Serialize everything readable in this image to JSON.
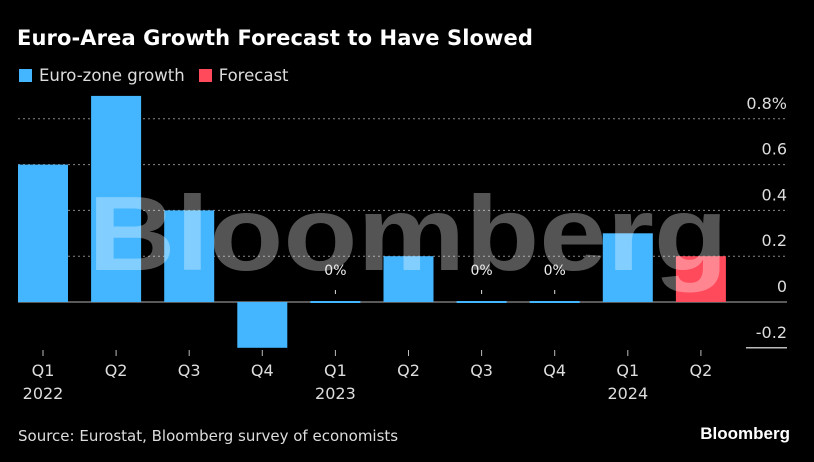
{
  "header": {
    "title": "Euro-Area Growth Forecast to Have Slowed"
  },
  "legend": [
    {
      "label": "Euro-zone growth",
      "color": "#44b6ff"
    },
    {
      "label": "Forecast",
      "color": "#ff4a5b"
    }
  ],
  "footer": {
    "source": "Source: Eurostat, Bloomberg survey of economists",
    "brand": "Bloomberg"
  },
  "watermark": "Bloomberg",
  "chart_data": {
    "type": "bar",
    "title": "Euro-Area Growth Forecast to Have Slowed",
    "xlabel": "",
    "ylabel": "",
    "categories": [
      "Q1 2022",
      "Q2 2022",
      "Q3 2022",
      "Q4 2022",
      "Q1 2023",
      "Q2 2023",
      "Q3 2023",
      "Q4 2023",
      "Q1 2024",
      "Q2 2024"
    ],
    "tick_labels": [
      {
        "quarter": "Q1",
        "year": "2022"
      },
      {
        "quarter": "Q2",
        "year": ""
      },
      {
        "quarter": "Q3",
        "year": ""
      },
      {
        "quarter": "Q4",
        "year": ""
      },
      {
        "quarter": "Q1",
        "year": "2023"
      },
      {
        "quarter": "Q2",
        "year": ""
      },
      {
        "quarter": "Q3",
        "year": ""
      },
      {
        "quarter": "Q4",
        "year": ""
      },
      {
        "quarter": "Q1",
        "year": "2024"
      },
      {
        "quarter": "Q2",
        "year": ""
      }
    ],
    "values": [
      0.6,
      0.9,
      0.4,
      -0.2,
      0.0,
      0.2,
      0.0,
      0.0,
      0.3,
      0.2
    ],
    "series_type": [
      "actual",
      "actual",
      "actual",
      "actual",
      "actual",
      "actual",
      "actual",
      "actual",
      "actual",
      "forecast"
    ],
    "series": [
      {
        "name": "Euro-zone growth",
        "color": "#44b6ff"
      },
      {
        "name": "Forecast",
        "color": "#ff4a5b"
      }
    ],
    "data_labels": [
      {
        "index": 4,
        "text": "0%"
      },
      {
        "index": 6,
        "text": "0%"
      },
      {
        "index": 7,
        "text": "0%"
      }
    ],
    "yticks": [
      {
        "value": 0.8,
        "label": "0.8%"
      },
      {
        "value": 0.6,
        "label": "0.6"
      },
      {
        "value": 0.4,
        "label": "0.4"
      },
      {
        "value": 0.2,
        "label": "0.2"
      },
      {
        "value": 0.0,
        "label": "0"
      },
      {
        "value": -0.2,
        "label": "-0.2"
      }
    ],
    "ylim": [
      -0.2,
      0.9
    ],
    "grid": true,
    "legend_position": "top-left",
    "y_axis_position": "right"
  }
}
